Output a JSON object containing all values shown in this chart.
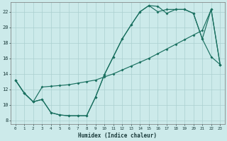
{
  "xlabel": "Humidex (Indice chaleur)",
  "bg_color": "#cceaea",
  "line_color": "#1a7060",
  "grid_color": "#aacfcf",
  "xlim": [
    -0.5,
    23.5
  ],
  "ylim": [
    7.5,
    23.2
  ],
  "xticks": [
    0,
    1,
    2,
    3,
    4,
    5,
    6,
    7,
    8,
    9,
    10,
    11,
    12,
    13,
    14,
    15,
    16,
    17,
    18,
    19,
    20,
    21,
    22,
    23
  ],
  "yticks": [
    8,
    10,
    12,
    14,
    16,
    18,
    20,
    22
  ],
  "line1_x": [
    0,
    1,
    2,
    3,
    4,
    5,
    6,
    7,
    8,
    9,
    10,
    11,
    12,
    13,
    14,
    15,
    16,
    17,
    18,
    19,
    20,
    21,
    22,
    23
  ],
  "line1_y": [
    13.2,
    11.5,
    10.4,
    10.7,
    9.0,
    8.7,
    8.6,
    8.6,
    8.6,
    11.0,
    13.9,
    16.2,
    18.5,
    20.3,
    22.0,
    22.8,
    22.7,
    21.8,
    22.3,
    22.3,
    21.8,
    18.5,
    16.2,
    15.2
  ],
  "line2_x": [
    0,
    1,
    2,
    3,
    4,
    5,
    6,
    7,
    8,
    9,
    10,
    11,
    12,
    13,
    14,
    15,
    16,
    17,
    18,
    19,
    20,
    21,
    22,
    23
  ],
  "line2_y": [
    13.2,
    11.5,
    10.4,
    10.7,
    9.0,
    8.7,
    8.6,
    8.6,
    8.6,
    11.0,
    13.9,
    16.2,
    18.5,
    20.3,
    22.0,
    22.8,
    22.0,
    22.3,
    22.3,
    22.3,
    21.8,
    18.5,
    22.3,
    15.2
  ],
  "line3_x": [
    0,
    1,
    2,
    3,
    4,
    5,
    6,
    7,
    8,
    9,
    10,
    11,
    12,
    13,
    14,
    15,
    16,
    17,
    18,
    19,
    20,
    21,
    22,
    23
  ],
  "line3_y": [
    13.2,
    11.5,
    10.4,
    12.3,
    12.4,
    12.5,
    12.6,
    12.8,
    13.0,
    13.2,
    13.6,
    14.0,
    14.5,
    15.0,
    15.5,
    16.0,
    16.6,
    17.2,
    17.8,
    18.4,
    19.0,
    19.6,
    22.3,
    15.2
  ]
}
